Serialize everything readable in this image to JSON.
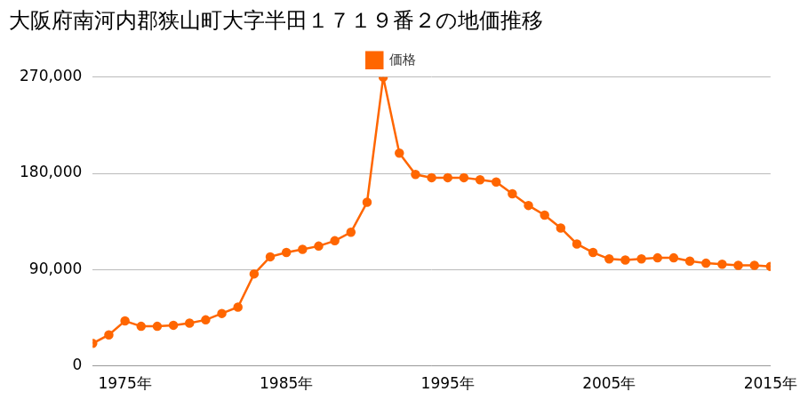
{
  "chart_data": {
    "type": "line",
    "title": "大阪府南河内郡狭山町大字半田１７１９番２の地価推移",
    "legend": "top",
    "grid": true,
    "x": [
      1973,
      1974,
      1975,
      1976,
      1977,
      1978,
      1979,
      1980,
      1981,
      1982,
      1983,
      1984,
      1985,
      1986,
      1987,
      1988,
      1989,
      1990,
      1991,
      1992,
      1993,
      1994,
      1995,
      1996,
      1997,
      1998,
      1999,
      2000,
      2001,
      2002,
      2003,
      2004,
      2005,
      2006,
      2007,
      2008,
      2009,
      2010,
      2011,
      2012,
      2013,
      2014,
      2015
    ],
    "series": [
      {
        "name": "価格",
        "color": "#ff6600",
        "marker": "circle",
        "values": [
          21000,
          29000,
          42000,
          37000,
          37000,
          38000,
          40000,
          43000,
          49000,
          55000,
          86000,
          102000,
          106000,
          109000,
          112000,
          117000,
          125000,
          153000,
          270000,
          199000,
          179000,
          176000,
          176000,
          176000,
          174000,
          172000,
          161000,
          150000,
          141000,
          129000,
          114000,
          106000,
          100000,
          99000,
          100000,
          101000,
          101000,
          98000,
          96000,
          95000,
          94000,
          94000,
          93000
        ]
      }
    ],
    "xlim": [
      1973,
      2015
    ],
    "xticks": [
      {
        "value": 1975,
        "label": "1975年"
      },
      {
        "value": 1985,
        "label": "1985年"
      },
      {
        "value": 1995,
        "label": "1995年"
      },
      {
        "value": 2005,
        "label": "2005年"
      },
      {
        "value": 2015,
        "label": "2015年"
      }
    ],
    "ylim": [
      0,
      270000
    ],
    "yticks": [
      0,
      {
        "value": 90000,
        "label": "90,000"
      },
      {
        "value": 180000,
        "label": "180,000"
      },
      {
        "value": 270000,
        "label": "270,000"
      }
    ]
  }
}
